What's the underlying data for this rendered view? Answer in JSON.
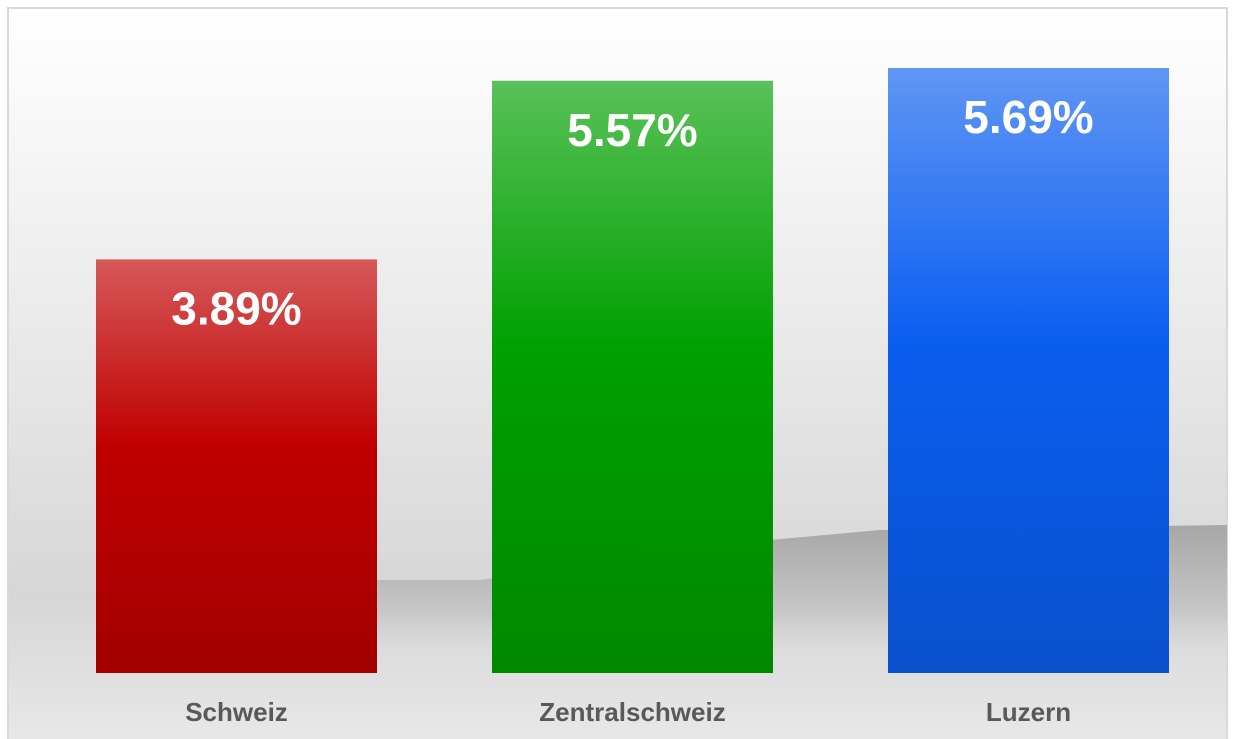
{
  "chart_data": {
    "type": "bar",
    "categories": [
      "Schweiz",
      "Zentralschweiz",
      "Luzern"
    ],
    "values": [
      3.89,
      5.57,
      5.69
    ],
    "value_labels": [
      "3.89%",
      "5.57%",
      "5.69%"
    ],
    "colors": [
      "#c00000",
      "#00a000",
      "#0a5ef0"
    ]
  }
}
